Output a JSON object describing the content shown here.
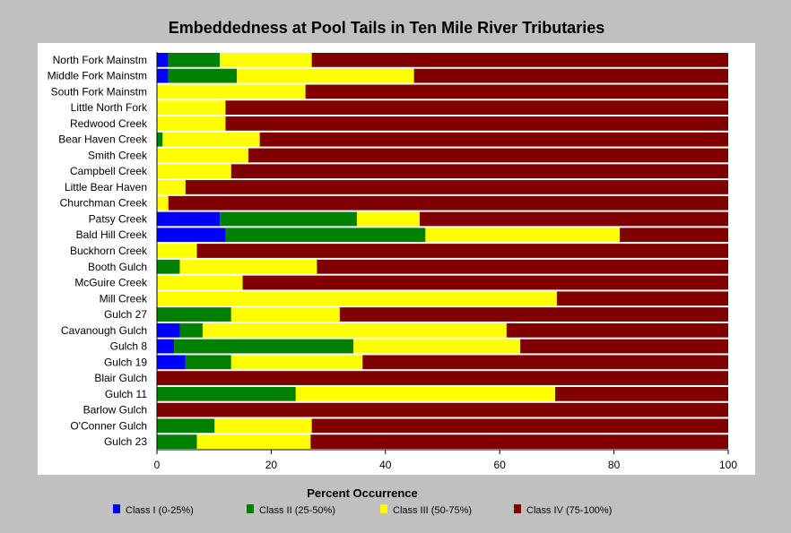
{
  "chart_data": {
    "type": "bar",
    "orientation": "horizontal",
    "stacked": true,
    "title": "Embeddedness at Pool Tails in Ten Mile River Tributaries",
    "xlabel": "Percent Occurrence",
    "ylabel": "",
    "xlim": [
      0,
      100
    ],
    "xticks": [
      "0",
      "20",
      "40",
      "60",
      "80",
      "100"
    ],
    "grid": false,
    "legend_placement": "bottom",
    "categories": [
      "North Fork Mainstm",
      "Middle Fork Mainstm",
      "South Fork Mainstm",
      "Little North Fork",
      "Redwood Creek",
      "Bear Haven Creek",
      "Smith Creek",
      "Campbell Creek",
      "Little Bear Haven",
      "Churchman Creek",
      "Patsy Creek",
      "Bald Hill Creek",
      "Buckhorn Creek",
      "Booth Gulch",
      "McGuire Creek",
      "Mill Creek",
      "Gulch 27",
      "Cavanough Gulch",
      "Gulch 8",
      "Gulch 19",
      "Blair Gulch",
      "Gulch 11",
      "Barlow Gulch",
      "O'Conner Gulch",
      "Gulch 23"
    ],
    "series": [
      {
        "name": "Class I (0-25%)",
        "color": "#0000ff",
        "values": [
          2,
          2,
          0,
          0,
          0,
          0,
          0,
          0,
          0,
          0,
          11,
          12,
          0,
          0,
          0,
          0,
          0,
          4,
          3,
          5,
          0,
          0,
          0,
          0,
          0
        ]
      },
      {
        "name": "Class II (25-50%)",
        "color": "#008000",
        "values": [
          9,
          12,
          0,
          0,
          0,
          1,
          0,
          0,
          0,
          0,
          24,
          35,
          0,
          4,
          0,
          0,
          13,
          4,
          31.4,
          8,
          0,
          24.3,
          0,
          10.1,
          7
        ]
      },
      {
        "name": "Class III (50-75%)",
        "color": "#ffff00",
        "values": [
          16.1,
          31,
          26,
          12,
          12,
          17,
          16,
          13,
          5,
          2,
          11,
          34,
          7,
          24,
          15,
          70,
          19,
          53.2,
          29.2,
          23,
          0,
          45.4,
          0,
          17,
          19.9
        ]
      },
      {
        "name": "Class IV (75-100%)",
        "color": "#800000",
        "values": [
          72.9,
          55,
          74,
          88,
          88,
          82,
          84,
          87,
          95,
          98,
          54,
          19,
          93,
          72,
          85,
          30,
          68,
          38.8,
          36.4,
          64,
          100,
          30.3,
          100,
          72.9,
          73.1
        ]
      }
    ]
  }
}
